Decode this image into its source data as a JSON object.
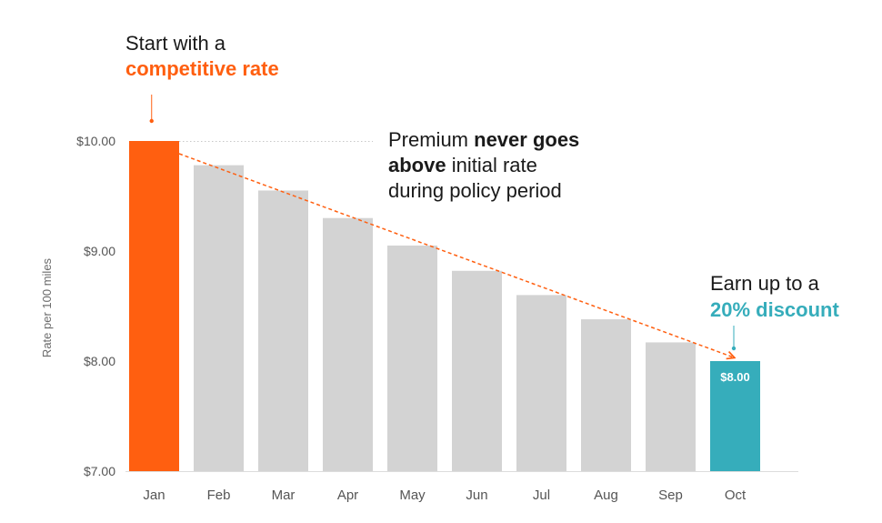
{
  "chart_data": {
    "type": "bar",
    "ylabel": "Rate per 100 miles",
    "ylim": [
      7.0,
      10.0
    ],
    "yticks": [
      "$7.00",
      "$8.00",
      "$9.00",
      "$10.00"
    ],
    "ytick_values": [
      7.0,
      8.0,
      9.0,
      10.0
    ],
    "categories": [
      "Jan",
      "Feb",
      "Mar",
      "Apr",
      "May",
      "Jun",
      "Jul",
      "Aug",
      "Sep",
      "Oct"
    ],
    "values": [
      10.0,
      9.78,
      9.55,
      9.3,
      9.05,
      8.82,
      8.6,
      8.38,
      8.17,
      8.0
    ],
    "bar_colors": [
      "#ff5f10",
      "#d3d3d3",
      "#d3d3d3",
      "#d3d3d3",
      "#d3d3d3",
      "#d3d3d3",
      "#d3d3d3",
      "#d3d3d3",
      "#d3d3d3",
      "#36adbb"
    ],
    "data_labels": [
      {
        "category": "Oct",
        "text": "$8.00"
      }
    ],
    "annotations": {
      "start": {
        "line1": "Start with a",
        "highlight": "competitive rate"
      },
      "premium": {
        "part1": "Premium ",
        "bold1": "never goes",
        "bold2": "above",
        "part2": " initial rate",
        "line3": "during policy period"
      },
      "earn": {
        "line1": "Earn up to a",
        "highlight": "20% discount"
      }
    },
    "colors": {
      "accent_orange": "#ff5f10",
      "accent_teal": "#36adbb",
      "bar_gray": "#d3d3d3"
    }
  }
}
